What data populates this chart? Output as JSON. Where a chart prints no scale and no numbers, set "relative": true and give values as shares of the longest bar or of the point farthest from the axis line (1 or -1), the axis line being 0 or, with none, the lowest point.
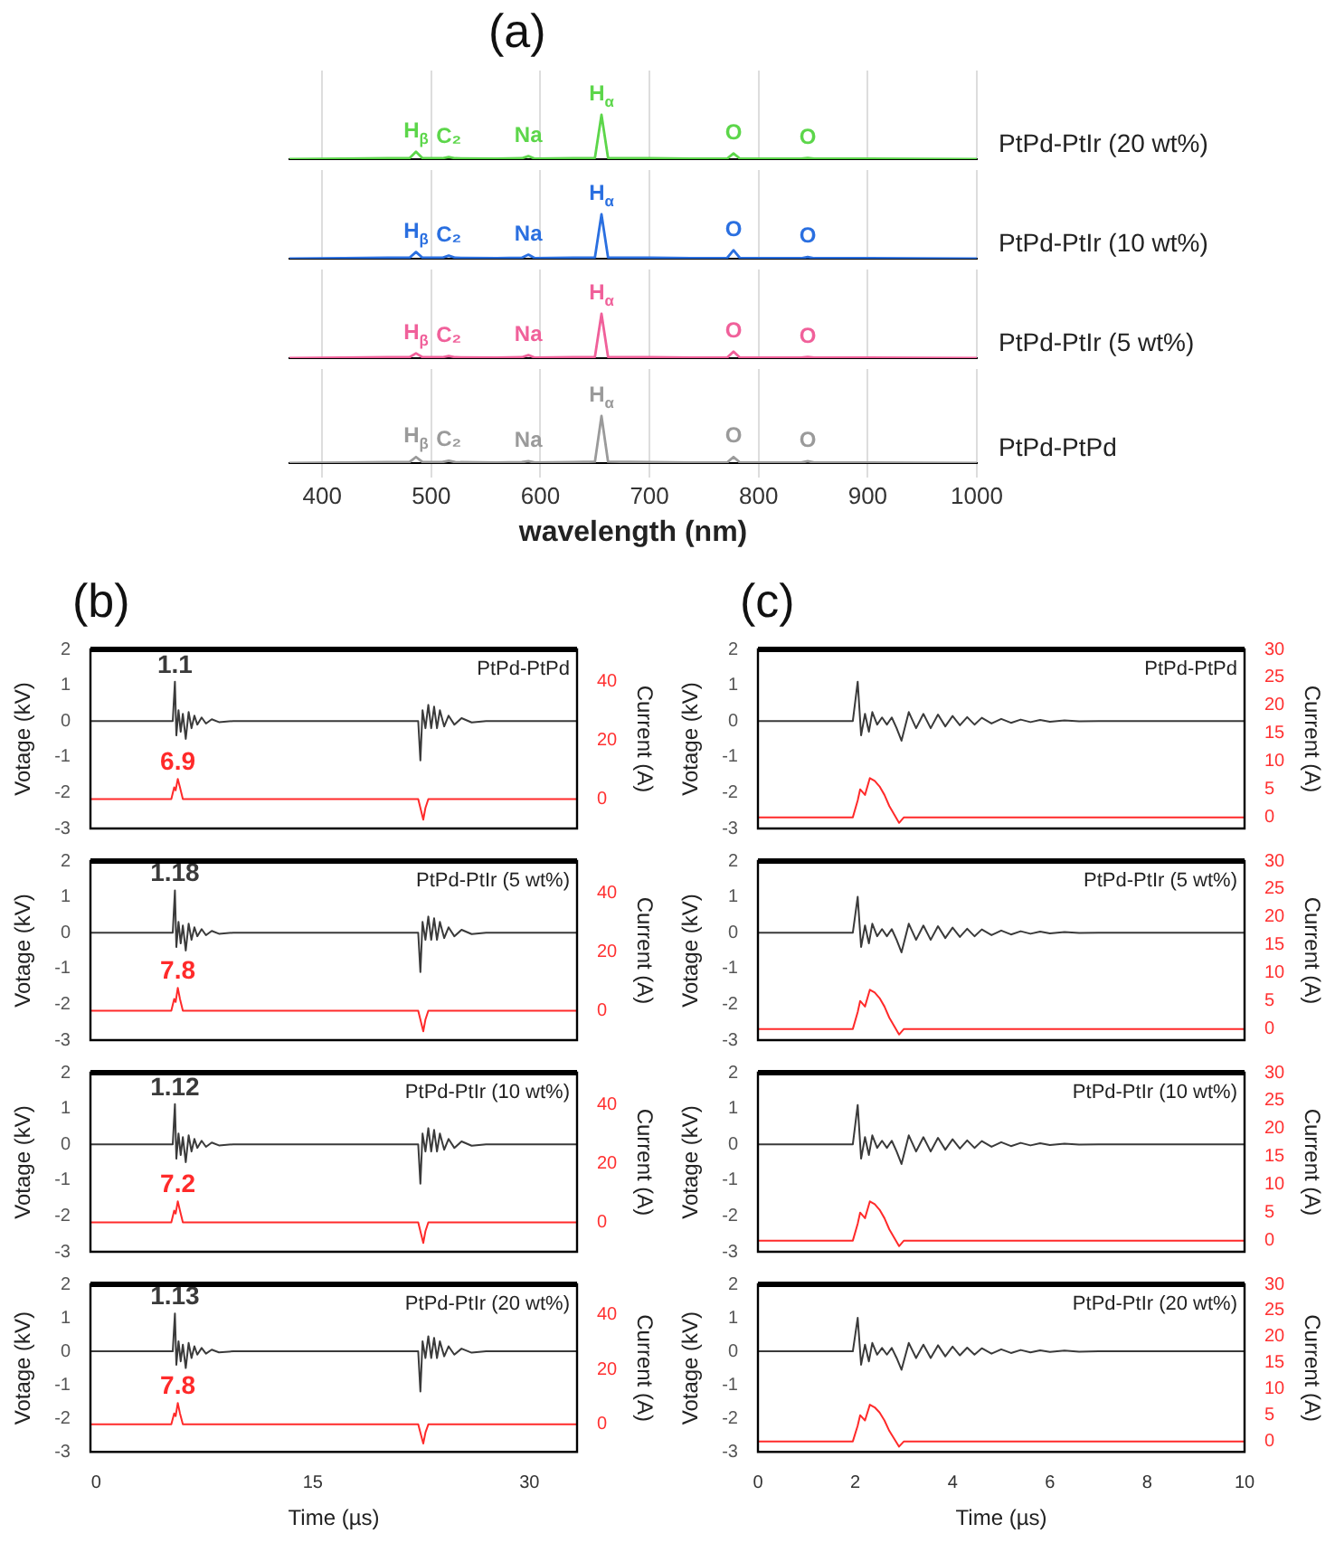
{
  "chart_data": [
    {
      "type": "line",
      "title": "(a)",
      "relative": true,
      "xlim": [
        370,
        1000
      ],
      "xticks": [
        400,
        500,
        600,
        700,
        800,
        900,
        1000
      ],
      "grid": "x",
      "tick_labels": false,
      "series": [
        {
          "name": "PtPd-PtIr (20 wt%)",
          "color": "#5cd64a",
          "x": [
            370,
            420,
            460,
            480,
            486,
            492,
            510,
            516,
            522,
            560,
            583,
            589,
            595,
            630,
            650,
            656,
            662,
            700,
            740,
            771,
            777,
            783,
            820,
            839,
            845,
            851,
            900,
            1000
          ],
          "values": [
            0,
            0.01,
            0.02,
            0.02,
            0.17,
            0.02,
            0.02,
            0.05,
            0.02,
            0.01,
            0.02,
            0.07,
            0.01,
            0.02,
            0.03,
            1,
            0.03,
            0.02,
            0.01,
            0.01,
            0.13,
            0.01,
            0.01,
            0.01,
            0.03,
            0.01,
            0.01,
            0
          ]
        }
      ],
      "annotations": [
        {
          "text": "H$_{β}$",
          "x": 486,
          "y": 0.17
        },
        {
          "text": "C₂",
          "x": 516,
          "y": 0.05
        },
        {
          "text": "Na",
          "x": 589,
          "y": 0.07
        },
        {
          "text": "H$_{α}$",
          "x": 656,
          "y": 1
        },
        {
          "text": "O",
          "x": 777,
          "y": 0.13
        },
        {
          "text": "O",
          "x": 845,
          "y": 0.03
        }
      ]
    },
    {
      "type": "line",
      "relative": true,
      "xlim": [
        370,
        1000
      ],
      "xticks": [
        400,
        500,
        600,
        700,
        800,
        900,
        1000
      ],
      "grid": "x",
      "tick_labels": false,
      "series": [
        {
          "name": "PtPd-PtIr (10 wt%)",
          "color": "#2a6fe0",
          "x": [
            370,
            420,
            460,
            480,
            486,
            492,
            510,
            516,
            522,
            560,
            583,
            589,
            595,
            630,
            650,
            656,
            662,
            700,
            740,
            771,
            777,
            783,
            820,
            839,
            845,
            851,
            900,
            1000
          ],
          "values": [
            0,
            0.01,
            0.02,
            0.02,
            0.15,
            0.02,
            0.02,
            0.07,
            0.02,
            0.01,
            0.02,
            0.09,
            0.01,
            0.02,
            0.03,
            1,
            0.03,
            0.02,
            0.01,
            0.01,
            0.19,
            0.01,
            0.01,
            0.01,
            0.04,
            0.01,
            0.01,
            0
          ]
        }
      ],
      "annotations": [
        {
          "text": "H$_{β}$",
          "x": 486,
          "y": 0.15
        },
        {
          "text": "C₂",
          "x": 516,
          "y": 0.07
        },
        {
          "text": "Na",
          "x": 589,
          "y": 0.09
        },
        {
          "text": "H$_{α}$",
          "x": 656,
          "y": 1
        },
        {
          "text": "O",
          "x": 777,
          "y": 0.19
        },
        {
          "text": "O",
          "x": 845,
          "y": 0.04
        }
      ]
    },
    {
      "type": "line",
      "relative": true,
      "xlim": [
        370,
        1000
      ],
      "xticks": [
        400,
        500,
        600,
        700,
        800,
        900,
        1000
      ],
      "grid": "x",
      "tick_labels": false,
      "series": [
        {
          "name": "PtPd-PtIr (5 wt%)",
          "color": "#f0609a",
          "x": [
            370,
            420,
            460,
            480,
            486,
            492,
            510,
            516,
            522,
            560,
            583,
            589,
            595,
            630,
            650,
            656,
            662,
            700,
            740,
            771,
            777,
            783,
            820,
            839,
            845,
            851,
            900,
            1000
          ],
          "values": [
            0,
            0.01,
            0.02,
            0.02,
            0.11,
            0.02,
            0.02,
            0.05,
            0.02,
            0.01,
            0.02,
            0.07,
            0.01,
            0.02,
            0.03,
            1,
            0.03,
            0.02,
            0.01,
            0.01,
            0.15,
            0.01,
            0.01,
            0.01,
            0.03,
            0.01,
            0.01,
            0
          ]
        }
      ],
      "annotations": [
        {
          "text": "H$_{β}$",
          "x": 486,
          "y": 0.11
        },
        {
          "text": "C₂",
          "x": 516,
          "y": 0.05
        },
        {
          "text": "Na",
          "x": 589,
          "y": 0.07
        },
        {
          "text": "H$_{α}$",
          "x": 656,
          "y": 1
        },
        {
          "text": "O",
          "x": 777,
          "y": 0.15
        },
        {
          "text": "O",
          "x": 845,
          "y": 0.03
        }
      ]
    },
    {
      "type": "line",
      "relative": true,
      "xlim": [
        370,
        1000
      ],
      "xticks": [
        400,
        500,
        600,
        700,
        800,
        900,
        1000
      ],
      "grid": "x",
      "tick_labels": "x",
      "xlabel": "wavelength (nm)",
      "series": [
        {
          "name": "PtPd-PtPd",
          "color": "#9a9a9a",
          "x": [
            370,
            420,
            460,
            480,
            486,
            492,
            510,
            516,
            522,
            560,
            583,
            589,
            595,
            630,
            650,
            656,
            662,
            700,
            740,
            771,
            777,
            783,
            820,
            839,
            845,
            851,
            900,
            1000
          ],
          "values": [
            0,
            0.01,
            0.02,
            0.02,
            0.13,
            0.02,
            0.02,
            0.05,
            0.02,
            0.01,
            0.02,
            0.04,
            0.01,
            0.02,
            0.03,
            1,
            0.03,
            0.02,
            0.01,
            0.01,
            0.13,
            0.01,
            0.01,
            0.01,
            0.04,
            0.01,
            0.01,
            0
          ]
        }
      ],
      "annotations": [
        {
          "text": "H$_{β}$",
          "x": 486,
          "y": 0.13
        },
        {
          "text": "C₂",
          "x": 516,
          "y": 0.05
        },
        {
          "text": "Na",
          "x": 589,
          "y": 0.04
        },
        {
          "text": "H$_{α}$",
          "x": 656,
          "y": 1
        },
        {
          "text": "O",
          "x": 777,
          "y": 0.13
        },
        {
          "text": "O",
          "x": 845,
          "y": 0.04
        }
      ]
    },
    {
      "type": "line",
      "title": "(b)",
      "ylabel": "Votage (kV)",
      "y2label": "Current (A)",
      "xlim": [
        -0.4,
        33.3
      ],
      "xticks": [
        0,
        15,
        30
      ],
      "ylim": [
        -3,
        2
      ],
      "yticks": [
        -3,
        -2,
        -1,
        0,
        1,
        2
      ],
      "y2lim": [
        -10,
        51
      ],
      "y2ticks": [
        0,
        20,
        40
      ],
      "tick_labels": "y",
      "annotations": [
        "PtPd-PtPd"
      ],
      "series": [
        {
          "color": "#3a3a3a",
          "x": [
            -0.4,
            5.3,
            5.45,
            5.55,
            5.7,
            5.85,
            6.0,
            6.2,
            6.4,
            6.6,
            6.8,
            7.0,
            7.3,
            7.6,
            8.0,
            8.5,
            9.5,
            22.3,
            22.45,
            22.6,
            22.8,
            23.0,
            23.2,
            23.4,
            23.6,
            23.8,
            24.1,
            24.4,
            24.8,
            25.3,
            26,
            27,
            33.3
          ],
          "values": [
            0,
            0,
            1.1,
            -0.4,
            0.3,
            -0.3,
            0.2,
            -0.5,
            0.25,
            -0.2,
            0.15,
            -0.1,
            0.1,
            -0.07,
            0.05,
            -0.03,
            0,
            0,
            -1.1,
            0.3,
            -0.2,
            0.45,
            -0.2,
            0.4,
            -0.2,
            0.3,
            -0.15,
            0.15,
            -0.1,
            0.08,
            -0.04,
            0,
            0
          ],
          "value_labels": [
            null,
            null,
            "1.1",
            null,
            null,
            null,
            null,
            null,
            null,
            null,
            null,
            null,
            null,
            null,
            null,
            null,
            null,
            null,
            null,
            null,
            null,
            null,
            null,
            null,
            null,
            null,
            null,
            null,
            null,
            null,
            null,
            null,
            null
          ]
        },
        {
          "axis": "y2",
          "color": "#ff2a2a",
          "x": [
            -0.4,
            5.2,
            5.4,
            5.5,
            5.65,
            5.8,
            6.0,
            22.3,
            22.5,
            22.65,
            22.8,
            23.0,
            33.3
          ],
          "values": [
            0,
            0,
            4,
            3,
            6.9,
            4,
            0,
            0,
            -4,
            -7,
            -3,
            0,
            0
          ],
          "value_labels": [
            null,
            null,
            null,
            null,
            "6.9",
            null,
            null,
            null,
            null,
            null,
            null,
            null,
            null
          ]
        }
      ]
    },
    {
      "type": "line",
      "ylabel": "Votage (kV)",
      "y2label": "Current (A)",
      "xlim": [
        -0.4,
        33.3
      ],
      "xticks": [
        0,
        15,
        30
      ],
      "ylim": [
        -3,
        2
      ],
      "yticks": [
        -3,
        -2,
        -1,
        0,
        1,
        2
      ],
      "y2lim": [
        -10,
        51
      ],
      "y2ticks": [
        0,
        20,
        40
      ],
      "tick_labels": "y",
      "annotations": [
        "PtPd-PtIr (5 wt%)"
      ],
      "series": [
        {
          "color": "#3a3a3a",
          "x": [
            -0.4,
            5.3,
            5.45,
            5.55,
            5.7,
            5.85,
            6.0,
            6.2,
            6.4,
            6.6,
            6.8,
            7.0,
            7.3,
            7.6,
            8.0,
            8.5,
            9.5,
            22.3,
            22.45,
            22.6,
            22.8,
            23.0,
            23.2,
            23.4,
            23.6,
            23.8,
            24.1,
            24.4,
            24.8,
            25.3,
            26,
            27,
            33.3
          ],
          "values": [
            0,
            0,
            1.18,
            -0.4,
            0.3,
            -0.3,
            0.2,
            -0.5,
            0.25,
            -0.2,
            0.15,
            -0.1,
            0.1,
            -0.07,
            0.05,
            -0.03,
            0,
            0,
            -1.1,
            0.3,
            -0.2,
            0.45,
            -0.2,
            0.4,
            -0.2,
            0.3,
            -0.15,
            0.15,
            -0.1,
            0.08,
            -0.04,
            0,
            0
          ],
          "value_labels": [
            null,
            null,
            "1.18",
            null,
            null,
            null,
            null,
            null,
            null,
            null,
            null,
            null,
            null,
            null,
            null,
            null,
            null,
            null,
            null,
            null,
            null,
            null,
            null,
            null,
            null,
            null,
            null,
            null,
            null,
            null,
            null,
            null,
            null
          ]
        },
        {
          "axis": "y2",
          "color": "#ff2a2a",
          "x": [
            -0.4,
            5.2,
            5.4,
            5.5,
            5.65,
            5.8,
            6.0,
            22.3,
            22.5,
            22.65,
            22.8,
            23.0,
            33.3
          ],
          "values": [
            0,
            0,
            4,
            3,
            7.8,
            4,
            0,
            0,
            -4,
            -7,
            -3,
            0,
            0
          ],
          "value_labels": [
            null,
            null,
            null,
            null,
            "7.8",
            null,
            null,
            null,
            null,
            null,
            null,
            null,
            null
          ]
        }
      ]
    },
    {
      "type": "line",
      "ylabel": "Votage (kV)",
      "y2label": "Current (A)",
      "xlim": [
        -0.4,
        33.3
      ],
      "xticks": [
        0,
        15,
        30
      ],
      "ylim": [
        -3,
        2
      ],
      "yticks": [
        -3,
        -2,
        -1,
        0,
        1,
        2
      ],
      "y2lim": [
        -10,
        51
      ],
      "y2ticks": [
        0,
        20,
        40
      ],
      "tick_labels": "y",
      "annotations": [
        "PtPd-PtIr (10 wt%)"
      ],
      "series": [
        {
          "color": "#3a3a3a",
          "x": [
            -0.4,
            5.3,
            5.45,
            5.55,
            5.7,
            5.85,
            6.0,
            6.2,
            6.4,
            6.6,
            6.8,
            7.0,
            7.3,
            7.6,
            8.0,
            8.5,
            9.5,
            22.3,
            22.45,
            22.6,
            22.8,
            23.0,
            23.2,
            23.4,
            23.6,
            23.8,
            24.1,
            24.4,
            24.8,
            25.3,
            26,
            27,
            33.3
          ],
          "values": [
            0,
            0,
            1.12,
            -0.4,
            0.3,
            -0.3,
            0.2,
            -0.5,
            0.25,
            -0.2,
            0.15,
            -0.1,
            0.1,
            -0.07,
            0.05,
            -0.03,
            0,
            0,
            -1.1,
            0.3,
            -0.2,
            0.45,
            -0.2,
            0.4,
            -0.2,
            0.3,
            -0.15,
            0.15,
            -0.1,
            0.08,
            -0.04,
            0,
            0
          ],
          "value_labels": [
            null,
            null,
            "1.12",
            null,
            null,
            null,
            null,
            null,
            null,
            null,
            null,
            null,
            null,
            null,
            null,
            null,
            null,
            null,
            null,
            null,
            null,
            null,
            null,
            null,
            null,
            null,
            null,
            null,
            null,
            null,
            null,
            null,
            null
          ]
        },
        {
          "axis": "y2",
          "color": "#ff2a2a",
          "x": [
            -0.4,
            5.2,
            5.4,
            5.5,
            5.65,
            5.8,
            6.0,
            22.3,
            22.5,
            22.65,
            22.8,
            23.0,
            33.3
          ],
          "values": [
            0,
            0,
            4,
            3,
            7.2,
            4,
            0,
            0,
            -4,
            -7,
            -3,
            0,
            0
          ],
          "value_labels": [
            null,
            null,
            null,
            null,
            "7.2",
            null,
            null,
            null,
            null,
            null,
            null,
            null,
            null
          ]
        }
      ]
    },
    {
      "type": "line",
      "ylabel": "Votage (kV)",
      "y2label": "Current (A)",
      "xlabel": "Time (µs)",
      "xlim": [
        -0.4,
        33.3
      ],
      "xticks": [
        0,
        15,
        30
      ],
      "ylim": [
        -3,
        2
      ],
      "yticks": [
        -3,
        -2,
        -1,
        0,
        1,
        2
      ],
      "y2lim": [
        -10,
        51
      ],
      "y2ticks": [
        0,
        20,
        40
      ],
      "annotations": [
        "PtPd-PtIr (20 wt%)"
      ],
      "series": [
        {
          "color": "#3a3a3a",
          "x": [
            -0.4,
            5.3,
            5.45,
            5.55,
            5.7,
            5.85,
            6.0,
            6.2,
            6.4,
            6.6,
            6.8,
            7.0,
            7.3,
            7.6,
            8.0,
            8.5,
            9.5,
            22.3,
            22.45,
            22.6,
            22.8,
            23.0,
            23.2,
            23.4,
            23.6,
            23.8,
            24.1,
            24.4,
            24.8,
            25.3,
            26,
            27,
            33.3
          ],
          "values": [
            0,
            0,
            1.13,
            -0.4,
            0.3,
            -0.3,
            0.2,
            -0.5,
            0.25,
            -0.2,
            0.15,
            -0.1,
            0.1,
            -0.07,
            0.05,
            -0.03,
            0,
            0,
            -1.2,
            0.3,
            -0.2,
            0.45,
            -0.2,
            0.4,
            -0.2,
            0.3,
            -0.15,
            0.15,
            -0.1,
            0.08,
            -0.04,
            0,
            0
          ],
          "value_labels": [
            null,
            null,
            "1.13",
            null,
            null,
            null,
            null,
            null,
            null,
            null,
            null,
            null,
            null,
            null,
            null,
            null,
            null,
            null,
            null,
            null,
            null,
            null,
            null,
            null,
            null,
            null,
            null,
            null,
            null,
            null,
            null,
            null,
            null
          ]
        },
        {
          "axis": "y2",
          "color": "#ff2a2a",
          "x": [
            -0.4,
            5.2,
            5.4,
            5.5,
            5.65,
            5.8,
            6.0,
            22.3,
            22.5,
            22.65,
            22.8,
            23.0,
            33.3
          ],
          "values": [
            0,
            0,
            4,
            3,
            7.8,
            4,
            0,
            0,
            -4,
            -7,
            -3,
            0,
            0
          ],
          "value_labels": [
            null,
            null,
            null,
            null,
            "7.8",
            null,
            null,
            null,
            null,
            null,
            null,
            null,
            null
          ]
        }
      ]
    },
    {
      "type": "line",
      "title": "(c)",
      "ylabel": "Votage (kV)",
      "y2label": "Current (A)",
      "xlim": [
        0,
        10
      ],
      "xticks": [
        0,
        2,
        4,
        6,
        8,
        10
      ],
      "ylim": [
        -3,
        2
      ],
      "yticks": [
        -3,
        -2,
        -1,
        0,
        1,
        2
      ],
      "y2lim": [
        -2,
        30
      ],
      "y2ticks": [
        0,
        5,
        10,
        15,
        20,
        25,
        30
      ],
      "tick_labels": "y",
      "annotations": [
        "PtPd-PtPd"
      ],
      "series": [
        {
          "color": "#3a3a3a",
          "x": [
            0,
            1.95,
            2.05,
            2.12,
            2.2,
            2.28,
            2.35,
            2.45,
            2.55,
            2.65,
            2.75,
            2.85,
            2.95,
            3.1,
            3.25,
            3.4,
            3.55,
            3.7,
            3.85,
            4.0,
            4.15,
            4.3,
            4.45,
            4.6,
            4.8,
            5.0,
            5.2,
            5.4,
            5.6,
            5.8,
            6.0,
            6.3,
            6.6,
            7,
            10
          ],
          "values": [
            0,
            0,
            1.1,
            -0.4,
            0.2,
            -0.3,
            0.25,
            -0.1,
            0.1,
            -0.1,
            0.1,
            -0.2,
            -0.55,
            0.25,
            -0.2,
            0.2,
            -0.2,
            0.18,
            -0.15,
            0.14,
            -0.12,
            0.11,
            -0.1,
            0.09,
            -0.07,
            0.06,
            -0.05,
            0.04,
            -0.03,
            0.03,
            -0.02,
            0.02,
            -0.01,
            0,
            0
          ]
        },
        {
          "axis": "y2",
          "color": "#ff2a2a",
          "x": [
            0,
            1.95,
            2.05,
            2.1,
            2.2,
            2.3,
            2.4,
            2.5,
            2.6,
            2.7,
            2.8,
            2.9,
            3.0,
            10
          ],
          "values": [
            0,
            0,
            3,
            5,
            4,
            7,
            6.5,
            5.5,
            4,
            2,
            0.5,
            -1,
            0,
            0
          ]
        }
      ]
    },
    {
      "type": "line",
      "ylabel": "Votage (kV)",
      "y2label": "Current (A)",
      "xlim": [
        0,
        10
      ],
      "xticks": [
        0,
        2,
        4,
        6,
        8,
        10
      ],
      "ylim": [
        -3,
        2
      ],
      "yticks": [
        -3,
        -2,
        -1,
        0,
        1,
        2
      ],
      "y2lim": [
        -2,
        30
      ],
      "y2ticks": [
        0,
        5,
        10,
        15,
        20,
        25,
        30
      ],
      "tick_labels": "y",
      "annotations": [
        "PtPd-PtIr (5 wt%)"
      ],
      "series": [
        {
          "color": "#3a3a3a",
          "x": [
            0,
            1.95,
            2.05,
            2.12,
            2.2,
            2.28,
            2.35,
            2.45,
            2.55,
            2.65,
            2.75,
            2.85,
            2.95,
            3.1,
            3.25,
            3.4,
            3.55,
            3.7,
            3.85,
            4.0,
            4.15,
            4.3,
            4.45,
            4.6,
            4.8,
            5.0,
            5.2,
            5.4,
            5.6,
            5.8,
            6.0,
            6.3,
            6.6,
            7,
            10
          ],
          "values": [
            0,
            0,
            1.0,
            -0.4,
            0.2,
            -0.3,
            0.25,
            -0.1,
            0.1,
            -0.1,
            0.1,
            -0.2,
            -0.55,
            0.25,
            -0.2,
            0.2,
            -0.2,
            0.18,
            -0.15,
            0.14,
            -0.12,
            0.11,
            -0.1,
            0.09,
            -0.07,
            0.06,
            -0.05,
            0.04,
            -0.03,
            0.03,
            -0.02,
            0.02,
            -0.01,
            0,
            0
          ]
        },
        {
          "axis": "y2",
          "color": "#ff2a2a",
          "x": [
            0,
            1.95,
            2.05,
            2.1,
            2.2,
            2.3,
            2.4,
            2.5,
            2.6,
            2.7,
            2.8,
            2.9,
            3.0,
            10
          ],
          "values": [
            0,
            0,
            3,
            5,
            4,
            7,
            6.5,
            5.5,
            4,
            2,
            0.5,
            -1,
            0,
            0
          ]
        }
      ]
    },
    {
      "type": "line",
      "ylabel": "Votage (kV)",
      "y2label": "Current (A)",
      "xlim": [
        0,
        10
      ],
      "xticks": [
        0,
        2,
        4,
        6,
        8,
        10
      ],
      "ylim": [
        -3,
        2
      ],
      "yticks": [
        -3,
        -2,
        -1,
        0,
        1,
        2
      ],
      "y2lim": [
        -2,
        30
      ],
      "y2ticks": [
        0,
        5,
        10,
        15,
        20,
        25,
        30
      ],
      "tick_labels": "y",
      "annotations": [
        "PtPd-PtIr (10 wt%)"
      ],
      "series": [
        {
          "color": "#3a3a3a",
          "x": [
            0,
            1.95,
            2.05,
            2.12,
            2.2,
            2.28,
            2.35,
            2.45,
            2.55,
            2.65,
            2.75,
            2.85,
            2.95,
            3.1,
            3.25,
            3.4,
            3.55,
            3.7,
            3.85,
            4.0,
            4.15,
            4.3,
            4.45,
            4.6,
            4.8,
            5.0,
            5.2,
            5.4,
            5.6,
            5.8,
            6.0,
            6.3,
            6.6,
            7,
            10
          ],
          "values": [
            0,
            0,
            1.1,
            -0.4,
            0.2,
            -0.3,
            0.25,
            -0.1,
            0.1,
            -0.1,
            0.1,
            -0.2,
            -0.55,
            0.25,
            -0.2,
            0.2,
            -0.2,
            0.18,
            -0.15,
            0.14,
            -0.12,
            0.11,
            -0.1,
            0.09,
            -0.07,
            0.06,
            -0.05,
            0.04,
            -0.03,
            0.03,
            -0.02,
            0.02,
            -0.01,
            0,
            0
          ]
        },
        {
          "axis": "y2",
          "color": "#ff2a2a",
          "x": [
            0,
            1.95,
            2.05,
            2.1,
            2.2,
            2.3,
            2.4,
            2.5,
            2.6,
            2.7,
            2.8,
            2.9,
            3.0,
            10
          ],
          "values": [
            0,
            0,
            3,
            5,
            4,
            7,
            6.5,
            5.5,
            4,
            2,
            0.5,
            -1,
            0,
            0
          ]
        }
      ]
    },
    {
      "type": "line",
      "ylabel": "Votage (kV)",
      "y2label": "Current (A)",
      "xlabel": "Time (µs)",
      "xlim": [
        0,
        10
      ],
      "xticks": [
        0,
        2,
        4,
        6,
        8,
        10
      ],
      "ylim": [
        -3,
        2
      ],
      "yticks": [
        -3,
        -2,
        -1,
        0,
        1,
        2
      ],
      "y2lim": [
        -2,
        30
      ],
      "y2ticks": [
        0,
        5,
        10,
        15,
        20,
        25,
        30
      ],
      "annotations": [
        "PtPd-PtIr (20 wt%)"
      ],
      "series": [
        {
          "color": "#3a3a3a",
          "x": [
            0,
            1.95,
            2.05,
            2.12,
            2.2,
            2.28,
            2.35,
            2.45,
            2.55,
            2.65,
            2.75,
            2.85,
            2.95,
            3.1,
            3.25,
            3.4,
            3.55,
            3.7,
            3.85,
            4.0,
            4.15,
            4.3,
            4.45,
            4.6,
            4.8,
            5.0,
            5.2,
            5.4,
            5.6,
            5.8,
            6.0,
            6.3,
            6.6,
            7,
            10
          ],
          "values": [
            0,
            0,
            1.0,
            -0.4,
            0.2,
            -0.3,
            0.25,
            -0.1,
            0.1,
            -0.1,
            0.1,
            -0.2,
            -0.55,
            0.25,
            -0.2,
            0.2,
            -0.2,
            0.18,
            -0.15,
            0.14,
            -0.12,
            0.11,
            -0.1,
            0.09,
            -0.07,
            0.06,
            -0.05,
            0.04,
            -0.03,
            0.03,
            -0.02,
            0.02,
            -0.01,
            0,
            0
          ]
        },
        {
          "axis": "y2",
          "color": "#ff2a2a",
          "x": [
            0,
            1.95,
            2.05,
            2.1,
            2.2,
            2.3,
            2.4,
            2.5,
            2.6,
            2.7,
            2.8,
            2.9,
            3.0,
            10
          ],
          "values": [
            0,
            0,
            3,
            5,
            4,
            7,
            6.5,
            5.5,
            4,
            2,
            0.5,
            -1,
            0,
            0
          ]
        }
      ]
    }
  ]
}
